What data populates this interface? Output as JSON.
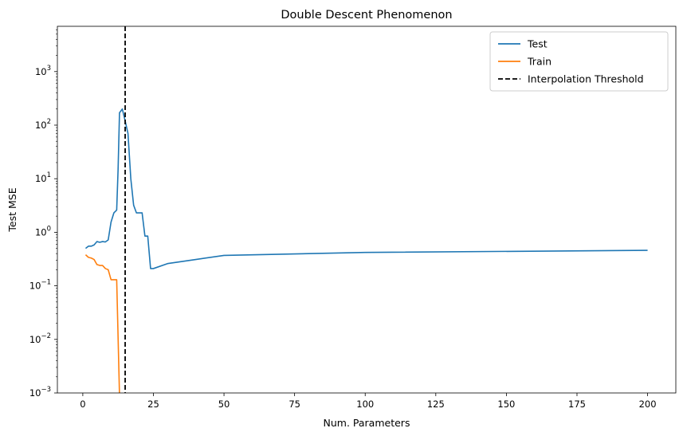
{
  "chart_data": {
    "type": "line",
    "title": "Double Descent Phenomenon",
    "xlabel": "Num. Parameters",
    "ylabel": "Test MSE",
    "yscale": "log",
    "xlim": [
      -9,
      210
    ],
    "ylim": [
      0.001,
      7000
    ],
    "xticks": [
      0,
      25,
      50,
      75,
      100,
      125,
      150,
      175,
      200
    ],
    "xtick_labels": [
      "0",
      "25",
      "50",
      "75",
      "100",
      "125",
      "150",
      "175",
      "200"
    ],
    "yticks": [
      0.001,
      0.01,
      0.1,
      1,
      10,
      100,
      1000
    ],
    "ytick_labels": [
      {
        "base": "10",
        "exp": "−3"
      },
      {
        "base": "10",
        "exp": "−2"
      },
      {
        "base": "10",
        "exp": "−1"
      },
      {
        "base": "10",
        "exp": "0"
      },
      {
        "base": "10",
        "exp": "1"
      },
      {
        "base": "10",
        "exp": "2"
      },
      {
        "base": "10",
        "exp": "3"
      }
    ],
    "grid": false,
    "legend_position": "top-right",
    "series": [
      {
        "name": "Test",
        "color": "#1f77b4",
        "style": "solid",
        "x": [
          1,
          2,
          3,
          4,
          5,
          6,
          7,
          8,
          9,
          10,
          11,
          12,
          12.5,
          13,
          14,
          15,
          16,
          17,
          18,
          19,
          20,
          21,
          22,
          23,
          24,
          25,
          30,
          40,
          50,
          100,
          200
        ],
        "y": [
          0.5,
          0.55,
          0.55,
          0.58,
          0.67,
          0.65,
          0.67,
          0.66,
          0.72,
          1.55,
          2.3,
          2.6,
          15,
          170,
          200,
          120,
          70,
          10,
          3.2,
          2.3,
          2.3,
          2.3,
          0.85,
          0.85,
          0.21,
          0.21,
          0.26,
          0.31,
          0.37,
          0.42,
          0.46
        ]
      },
      {
        "name": "Train",
        "color": "#ff7f0e",
        "style": "solid",
        "x": [
          1,
          2,
          3,
          4,
          5,
          6,
          7,
          8,
          9,
          10,
          11,
          12,
          13
        ],
        "y": [
          0.38,
          0.34,
          0.33,
          0.31,
          0.25,
          0.24,
          0.24,
          0.21,
          0.2,
          0.13,
          0.13,
          0.13,
          0.0009
        ]
      }
    ],
    "annotations": [
      {
        "type": "vline",
        "name": "Interpolation Threshold",
        "x": 15,
        "color": "#000000",
        "style": "dashed"
      }
    ]
  }
}
